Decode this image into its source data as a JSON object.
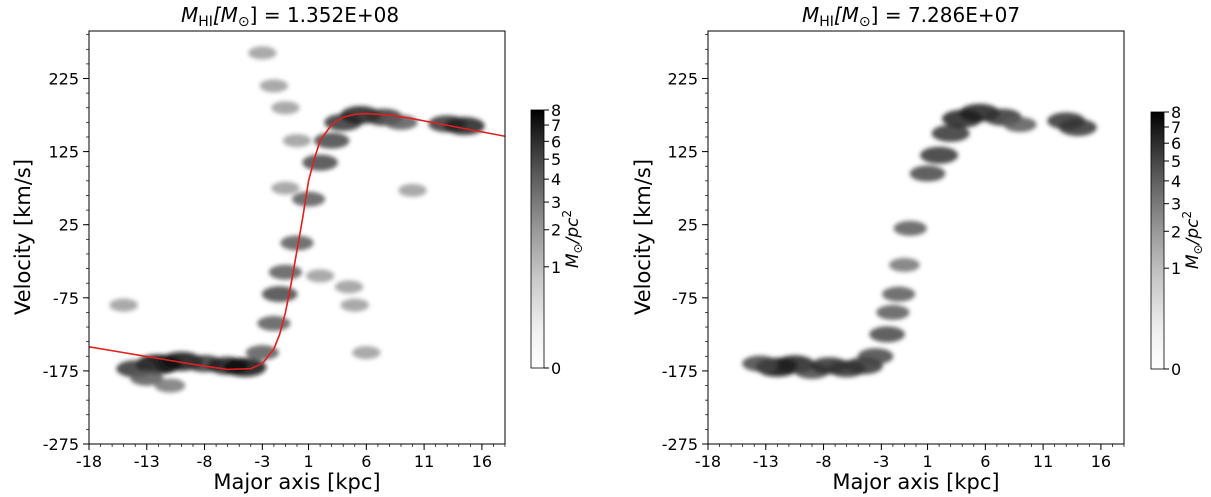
{
  "chart_data": [
    {
      "type": "heatmap",
      "title_main": "M",
      "title_sub": "HI",
      "title_unit_open": "[M",
      "title_unit_sub": "⊙",
      "title_unit_close": "]",
      "title_value": " = 1.352E+08",
      "xlabel": "Major axis [kpc]",
      "ylabel": "Velocity [km/s]",
      "xlim": [
        -18,
        18
      ],
      "ylim": [
        -275,
        290
      ],
      "xticks": [
        -18,
        -13,
        -8,
        -3,
        1,
        6,
        11,
        16
      ],
      "yticks": [
        -275,
        -175,
        -75,
        25,
        125,
        225
      ],
      "colormap": "Greys",
      "colorbar": {
        "ticks": [
          0,
          1,
          2,
          3,
          4,
          5,
          6,
          7,
          8
        ],
        "label_main": "M",
        "label_sub": "⊙",
        "label_rest": "/pc",
        "label_sup": "2"
      },
      "rotation_curve": {
        "color": "#e02020",
        "x": [
          -18,
          -15,
          -12,
          -9,
          -6,
          -4,
          -3,
          -2,
          -1.5,
          -1,
          -0.5,
          0,
          0.5,
          1,
          1.5,
          2,
          3,
          4,
          5,
          6,
          8,
          10,
          12,
          14,
          16,
          18
        ],
        "y": [
          -142,
          -150,
          -158,
          -166,
          -173,
          -172,
          -165,
          -145,
          -125,
          -95,
          -55,
          -10,
          35,
          85,
          115,
          140,
          162,
          172,
          176,
          177,
          175,
          170,
          164,
          158,
          152,
          146
        ]
      },
      "intensity_blobs": [
        {
          "x": -12,
          "y": -166,
          "v": 8
        },
        {
          "x": -10,
          "y": -162,
          "v": 7
        },
        {
          "x": -14,
          "y": -172,
          "v": 5
        },
        {
          "x": -8,
          "y": -165,
          "v": 5
        },
        {
          "x": -6,
          "y": -168,
          "v": 6
        },
        {
          "x": -4.5,
          "y": -170,
          "v": 7
        },
        {
          "x": -13,
          "y": -185,
          "v": 3
        },
        {
          "x": -11,
          "y": -195,
          "v": 2
        },
        {
          "x": -3,
          "y": -150,
          "v": 3
        },
        {
          "x": -2,
          "y": -110,
          "v": 3
        },
        {
          "x": -1.5,
          "y": -70,
          "v": 4
        },
        {
          "x": -1,
          "y": -40,
          "v": 3
        },
        {
          "x": 0,
          "y": 0,
          "v": 3
        },
        {
          "x": 1,
          "y": 60,
          "v": 3
        },
        {
          "x": 2,
          "y": 110,
          "v": 4
        },
        {
          "x": 3,
          "y": 140,
          "v": 4
        },
        {
          "x": 4,
          "y": 165,
          "v": 5
        },
        {
          "x": 5.5,
          "y": 175,
          "v": 6
        },
        {
          "x": 7.5,
          "y": 172,
          "v": 5
        },
        {
          "x": 9,
          "y": 165,
          "v": 3
        },
        {
          "x": 13,
          "y": 163,
          "v": 5
        },
        {
          "x": 14.5,
          "y": 160,
          "v": 6
        },
        {
          "x": -3,
          "y": 260,
          "v": 1
        },
        {
          "x": -2,
          "y": 215,
          "v": 1
        },
        {
          "x": -1,
          "y": 185,
          "v": 1
        },
        {
          "x": 0,
          "y": 140,
          "v": 1
        },
        {
          "x": -1,
          "y": 75,
          "v": 1
        },
        {
          "x": 2,
          "y": -45,
          "v": 1
        },
        {
          "x": 5,
          "y": -85,
          "v": 1
        },
        {
          "x": 6,
          "y": -150,
          "v": 1
        },
        {
          "x": -15,
          "y": -85,
          "v": 1
        },
        {
          "x": 10,
          "y": 72,
          "v": 1
        },
        {
          "x": 4.5,
          "y": -60,
          "v": 1
        }
      ]
    },
    {
      "type": "heatmap",
      "title_main": "M",
      "title_sub": "HI",
      "title_unit_open": "[M",
      "title_unit_sub": "⊙",
      "title_unit_close": "]",
      "title_value": " = 7.286E+07",
      "xlabel": "Major axis [kpc]",
      "ylabel": "Velocity [km/s]",
      "xlim": [
        -18,
        18
      ],
      "ylim": [
        -275,
        290
      ],
      "xticks": [
        -18,
        -13,
        -8,
        -3,
        1,
        6,
        11,
        16
      ],
      "yticks": [
        -275,
        -175,
        -75,
        25,
        125,
        225
      ],
      "colormap": "Greys",
      "colorbar": {
        "ticks": [
          0,
          1,
          2,
          3,
          4,
          5,
          6,
          7,
          8
        ],
        "label_main": "M",
        "label_sub": "⊙",
        "label_rest": "/pc",
        "label_sup": "2"
      },
      "intensity_blobs": [
        {
          "x": -12,
          "y": -170,
          "v": 7
        },
        {
          "x": -10.5,
          "y": -166,
          "v": 6
        },
        {
          "x": -13.5,
          "y": -165,
          "v": 4
        },
        {
          "x": -9,
          "y": -175,
          "v": 4
        },
        {
          "x": -7.5,
          "y": -168,
          "v": 5
        },
        {
          "x": -6,
          "y": -172,
          "v": 5
        },
        {
          "x": -4.5,
          "y": -168,
          "v": 5
        },
        {
          "x": -3.5,
          "y": -155,
          "v": 4
        },
        {
          "x": -2.5,
          "y": -125,
          "v": 4
        },
        {
          "x": -2,
          "y": -95,
          "v": 3
        },
        {
          "x": -1.5,
          "y": -70,
          "v": 3
        },
        {
          "x": -1,
          "y": -30,
          "v": 2
        },
        {
          "x": -0.5,
          "y": 20,
          "v": 3
        },
        {
          "x": 1,
          "y": 95,
          "v": 4
        },
        {
          "x": 2,
          "y": 120,
          "v": 5
        },
        {
          "x": 3,
          "y": 150,
          "v": 5
        },
        {
          "x": 4,
          "y": 170,
          "v": 6
        },
        {
          "x": 5.5,
          "y": 178,
          "v": 6
        },
        {
          "x": 7.5,
          "y": 172,
          "v": 5
        },
        {
          "x": 9,
          "y": 162,
          "v": 3
        },
        {
          "x": 13,
          "y": 167,
          "v": 5
        },
        {
          "x": 14,
          "y": 158,
          "v": 5
        }
      ]
    }
  ]
}
